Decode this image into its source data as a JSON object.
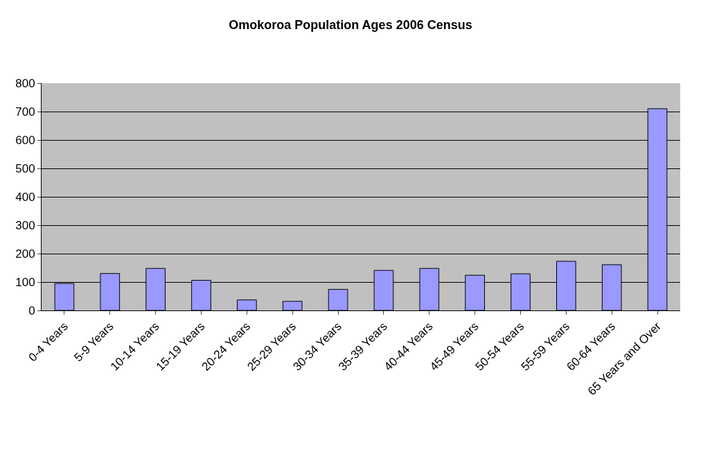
{
  "chart_data": {
    "type": "bar",
    "title": "Omokoroa Population Ages 2006 Census",
    "categories": [
      "0-4 Years",
      "5-9 Years",
      "10-14 Years",
      "15-19 Years",
      "20-24 Years",
      "25-29 Years",
      "30-34 Years",
      "35-39 Years",
      "40-44 Years",
      "45-49 Years",
      "50-54 Years",
      "55-59 Years",
      "60-64 Years",
      "65 Years and Over"
    ],
    "values": [
      95,
      130,
      148,
      106,
      37,
      32,
      74,
      141,
      148,
      124,
      129,
      173,
      161,
      710
    ],
    "color": "#9999ff",
    "ylim": [
      0,
      800
    ],
    "yticks": [
      0,
      100,
      200,
      300,
      400,
      500,
      600,
      700,
      800
    ],
    "grid": "y"
  }
}
